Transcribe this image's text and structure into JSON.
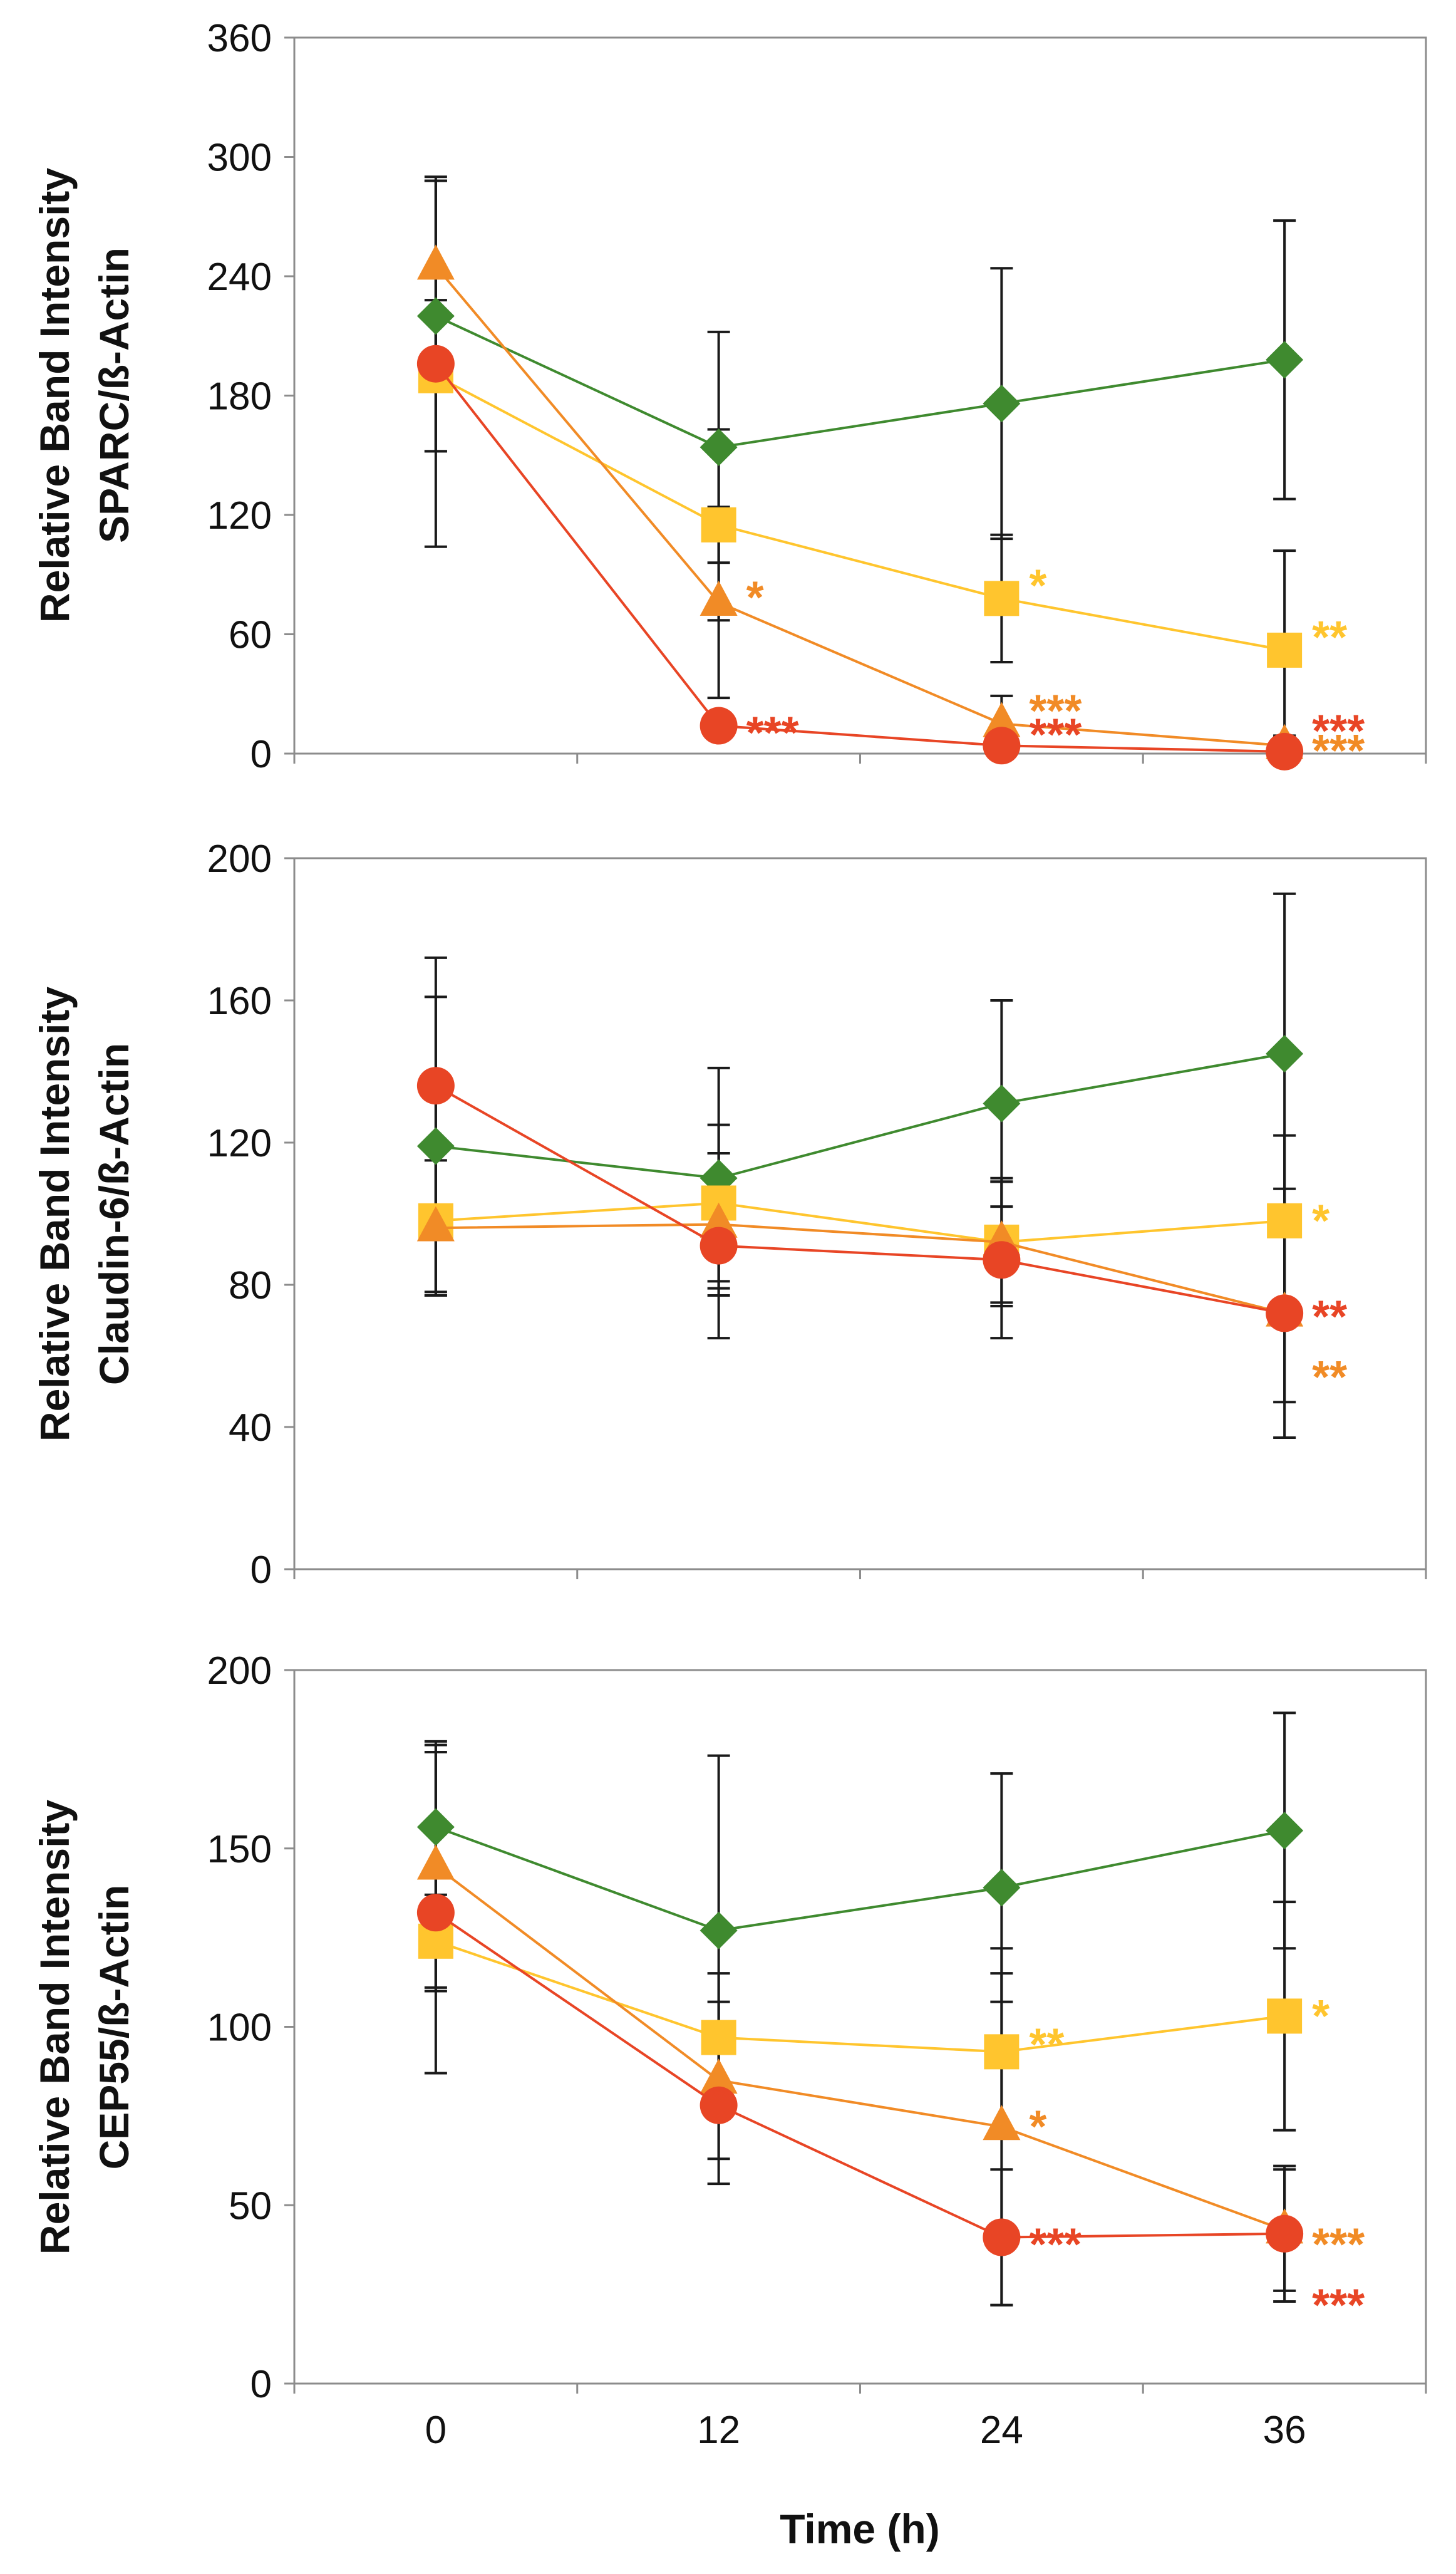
{
  "colors": {
    "green": "#3f8a2f",
    "yellow": "#ffc52e",
    "orange": "#f18b26",
    "red": "#e84525",
    "errorbar": "#1a1a1a",
    "frame": "#8c8c8c"
  },
  "x_axis": {
    "label": "Time (h)",
    "ticks": [
      0,
      12,
      24,
      36
    ],
    "tick_labels": [
      "0",
      "12",
      "24",
      "36"
    ],
    "xlim": [
      -6,
      42
    ]
  },
  "chart_data": [
    {
      "type": "line",
      "ylabel_line1": "Relative Band Intensity",
      "ylabel_line2": "SPARC/ß-Actin",
      "ylim": [
        0,
        360
      ],
      "yticks": [
        0,
        60,
        120,
        180,
        240,
        300,
        360
      ],
      "ytick_labels": [
        "0",
        "60",
        "120",
        "180",
        "240",
        "300",
        "360"
      ],
      "x": [
        0,
        12,
        24,
        36
      ],
      "series": [
        {
          "color_key": "green",
          "marker": "diamond",
          "values": [
            220,
            154,
            176,
            198
          ],
          "err": [
            68,
            58,
            68,
            70
          ]
        },
        {
          "color_key": "yellow",
          "marker": "square",
          "values": [
            190,
            115,
            78,
            52
          ],
          "err": [
            38,
            48,
            32,
            50
          ]
        },
        {
          "color_key": "orange",
          "marker": "triangle",
          "values": [
            245,
            76,
            15,
            4
          ],
          "err": [
            45,
            48,
            14,
            5
          ]
        },
        {
          "color_key": "red",
          "marker": "circle",
          "values": [
            196,
            14,
            4,
            1
          ],
          "err": [
            92,
            3,
            3,
            1
          ]
        }
      ],
      "annotations": [
        {
          "text": "*",
          "x": 12,
          "y": 82,
          "color_key": "orange"
        },
        {
          "text": "***",
          "x": 12,
          "y": 14,
          "color_key": "red"
        },
        {
          "text": "*",
          "x": 24,
          "y": 88,
          "color_key": "yellow"
        },
        {
          "text": "***",
          "x": 24,
          "y": 25,
          "color_key": "orange"
        },
        {
          "text": "***",
          "x": 24,
          "y": 13,
          "color_key": "red"
        },
        {
          "text": "**",
          "x": 36,
          "y": 62,
          "color_key": "yellow"
        },
        {
          "text": "***",
          "x": 36,
          "y": 15,
          "color_key": "red"
        },
        {
          "text": "***",
          "x": 36,
          "y": 5,
          "color_key": "orange"
        }
      ]
    },
    {
      "type": "line",
      "ylabel_line1": "Relative Band Intensity",
      "ylabel_line2": "Claudin-6/ß-Actin",
      "ylim": [
        0,
        200
      ],
      "yticks": [
        0,
        40,
        80,
        120,
        160,
        200
      ],
      "ytick_labels": [
        "0",
        "40",
        "80",
        "120",
        "160",
        "200"
      ],
      "x": [
        0,
        12,
        24,
        36
      ],
      "series": [
        {
          "color_key": "green",
          "marker": "diamond",
          "values": [
            119,
            110,
            131,
            145
          ],
          "err": [
            42,
            31,
            29,
            45
          ]
        },
        {
          "color_key": "yellow",
          "marker": "square",
          "values": [
            98,
            103,
            92,
            98
          ],
          "err": [
            20,
            22,
            18,
            24
          ]
        },
        {
          "color_key": "orange",
          "marker": "triangle",
          "values": [
            96,
            97,
            92,
            72
          ],
          "err": [
            19,
            20,
            17,
            25
          ]
        },
        {
          "color_key": "red",
          "marker": "circle",
          "values": [
            136,
            91,
            87,
            72
          ],
          "err": [
            36,
            26,
            22,
            35
          ]
        }
      ],
      "annotations": [
        {
          "text": "*",
          "x": 36,
          "y": 100,
          "color_key": "yellow"
        },
        {
          "text": "**",
          "x": 36,
          "y": 73,
          "color_key": "red"
        },
        {
          "text": "**",
          "x": 36,
          "y": 56,
          "color_key": "orange"
        }
      ]
    },
    {
      "type": "line",
      "ylabel_line1": "Relative Band Intensity",
      "ylabel_line2": "CEP55/ß-Actin",
      "ylim": [
        0,
        200
      ],
      "yticks": [
        0,
        50,
        100,
        150,
        200
      ],
      "ytick_labels": [
        "0",
        "50",
        "100",
        "150",
        "200"
      ],
      "x": [
        0,
        12,
        24,
        36
      ],
      "series": [
        {
          "color_key": "green",
          "marker": "diamond",
          "values": [
            156,
            127,
            139,
            155
          ],
          "err": [
            23,
            49,
            32,
            33
          ]
        },
        {
          "color_key": "yellow",
          "marker": "square",
          "values": [
            124,
            97,
            93,
            103
          ],
          "err": [
            13,
            18,
            22,
            32
          ]
        },
        {
          "color_key": "orange",
          "marker": "triangle",
          "values": [
            145,
            85,
            72,
            43
          ],
          "err": [
            35,
            22,
            50,
            17
          ]
        },
        {
          "color_key": "red",
          "marker": "circle",
          "values": [
            132,
            78,
            41,
            42
          ],
          "err": [
            45,
            22,
            19,
            19
          ]
        }
      ],
      "annotations": [
        {
          "text": "**",
          "x": 24,
          "y": 97,
          "color_key": "yellow"
        },
        {
          "text": "*",
          "x": 24,
          "y": 74,
          "color_key": "orange"
        },
        {
          "text": "***",
          "x": 24,
          "y": 41,
          "color_key": "red"
        },
        {
          "text": "*",
          "x": 36,
          "y": 105,
          "color_key": "yellow"
        },
        {
          "text": "***",
          "x": 36,
          "y": 41,
          "color_key": "orange"
        },
        {
          "text": "***",
          "x": 36,
          "y": 24,
          "color_key": "red"
        }
      ]
    }
  ]
}
